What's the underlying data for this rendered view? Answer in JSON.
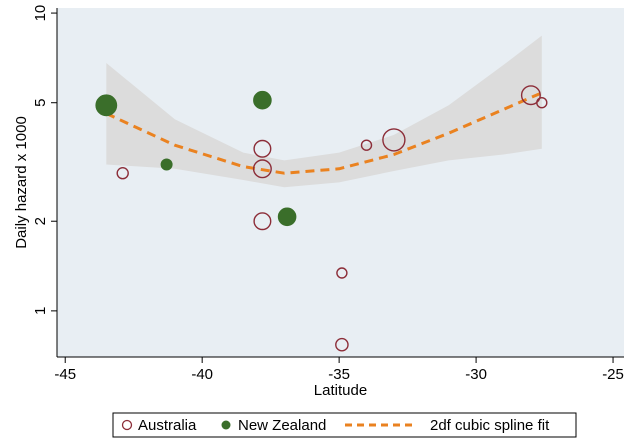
{
  "chart_data": {
    "type": "scatter",
    "title": "",
    "xlabel": "Latitude",
    "ylabel": "Daily hazard x 1000",
    "x_scale": "linear",
    "y_scale": "log",
    "xlim": [
      -45.3,
      -24.6
    ],
    "ylim": [
      0.7,
      10.4
    ],
    "x_ticks": [
      -45,
      -40,
      -35,
      -30,
      -25
    ],
    "x_tick_labels": [
      "-45",
      "-40",
      "-35",
      "-30",
      "-25"
    ],
    "y_ticks": [
      1,
      2,
      5,
      10
    ],
    "y_tick_labels": [
      "1",
      "2",
      "5",
      "10"
    ],
    "grid": false,
    "legend_position": "bottom",
    "colors": {
      "australia": "#8c2d38",
      "new_zealand": "#3a6e2a",
      "spline": "#ea8220",
      "band": "#dcdcdc",
      "plot_background": "#e8eef3"
    },
    "series": [
      {
        "name": "Australia",
        "marker": "hollow-circle",
        "points": [
          {
            "x": -42.9,
            "y": 2.9,
            "size": 1
          },
          {
            "x": -37.8,
            "y": 3.5,
            "size": 1.5
          },
          {
            "x": -37.8,
            "y": 3.0,
            "size": 1.6
          },
          {
            "x": -37.8,
            "y": 2.0,
            "size": 1.5
          },
          {
            "x": -34.9,
            "y": 1.34,
            "size": 0.9
          },
          {
            "x": -34.9,
            "y": 0.77,
            "size": 1.1
          },
          {
            "x": -34.0,
            "y": 3.6,
            "size": 0.9
          },
          {
            "x": -33.0,
            "y": 3.75,
            "size": 2.0
          },
          {
            "x": -28.0,
            "y": 5.3,
            "size": 1.7
          },
          {
            "x": -27.6,
            "y": 5.0,
            "size": 0.9
          }
        ]
      },
      {
        "name": "New Zealand",
        "marker": "filled-circle",
        "points": [
          {
            "x": -43.5,
            "y": 4.9,
            "size": 1.9
          },
          {
            "x": -41.3,
            "y": 3.1,
            "size": 1.0
          },
          {
            "x": -37.8,
            "y": 5.1,
            "size": 1.6
          },
          {
            "x": -36.9,
            "y": 2.07,
            "size": 1.6
          }
        ]
      },
      {
        "name": "2df cubic spline fit",
        "marker": "dashed-line",
        "x": [
          -43.5,
          -41.0,
          -38.5,
          -37.0,
          -35.0,
          -33.0,
          -31.0,
          -29.0,
          -27.6
        ],
        "y": [
          4.6,
          3.6,
          3.05,
          2.9,
          3.0,
          3.35,
          3.95,
          4.75,
          5.4
        ],
        "ci_lower": [
          3.1,
          3.0,
          2.75,
          2.6,
          2.7,
          2.95,
          3.2,
          3.35,
          3.5
        ],
        "ci_upper": [
          6.8,
          4.4,
          3.4,
          3.2,
          3.4,
          3.9,
          4.9,
          6.7,
          8.4
        ]
      }
    ]
  }
}
